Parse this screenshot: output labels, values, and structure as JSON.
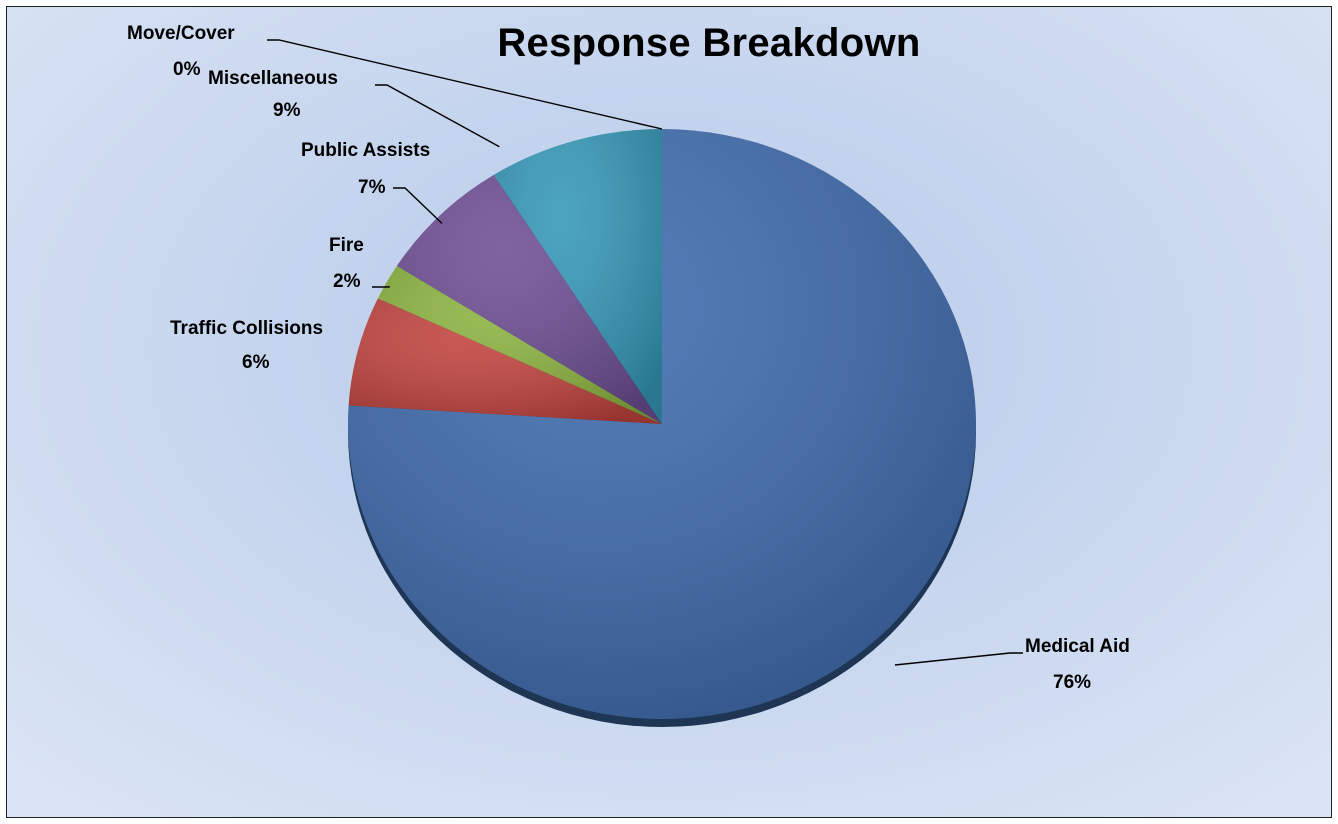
{
  "chart_data": {
    "type": "pie",
    "title": "Response Breakdown",
    "slices": [
      {
        "name": "Medical Aid",
        "value": 76,
        "label": "Medical Aid",
        "pct_label": "76%",
        "color": "#3d6aad"
      },
      {
        "name": "Traffic Collisions",
        "value": 6,
        "label": "Traffic Collisions",
        "pct_label": "6%",
        "color": "#c2433e"
      },
      {
        "name": "Fire",
        "value": 2,
        "label": "Fire",
        "pct_label": "2%",
        "color": "#8cb33f"
      },
      {
        "name": "Public Assists",
        "value": 7,
        "label": "Public Assists",
        "pct_label": "7%",
        "color": "#6e4e94"
      },
      {
        "name": "Miscellaneous",
        "value": 9,
        "label": "Miscellaneous",
        "pct_label": "9%",
        "color": "#3498b8"
      },
      {
        "name": "Move/Cover",
        "value": 0,
        "label": "Move/Cover",
        "pct_label": "0%",
        "color": "#e08a2e"
      }
    ]
  }
}
